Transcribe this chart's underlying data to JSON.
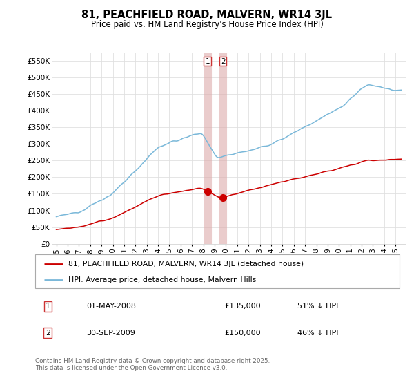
{
  "title1": "81, PEACHFIELD ROAD, MALVERN, WR14 3JL",
  "title2": "Price paid vs. HM Land Registry's House Price Index (HPI)",
  "ylim": [
    0,
    575000
  ],
  "yticks": [
    0,
    50000,
    100000,
    150000,
    200000,
    250000,
    300000,
    350000,
    400000,
    450000,
    500000,
    550000
  ],
  "ytick_labels": [
    "£0",
    "£50K",
    "£100K",
    "£150K",
    "£200K",
    "£250K",
    "£300K",
    "£350K",
    "£400K",
    "£450K",
    "£500K",
    "£550K"
  ],
  "hpi_color": "#7ab8d9",
  "price_color": "#cc0000",
  "marker_color": "#cc0000",
  "vline_color": "#ddaaaa",
  "grid_color": "#e0e0e0",
  "legend_label_red": "81, PEACHFIELD ROAD, MALVERN, WR14 3JL (detached house)",
  "legend_label_blue": "HPI: Average price, detached house, Malvern Hills",
  "transaction1_date": "01-MAY-2008",
  "transaction1_price": "£135,000",
  "transaction1_hpi": "51% ↓ HPI",
  "transaction2_date": "30-SEP-2009",
  "transaction2_price": "£150,000",
  "transaction2_hpi": "46% ↓ HPI",
  "footer": "Contains HM Land Registry data © Crown copyright and database right 2025.\nThis data is licensed under the Open Government Licence v3.0.",
  "t1_year": 2008.37,
  "t2_year": 2009.75,
  "t1_price": 135000,
  "t2_price": 150000,
  "xlim_left": 1994.6,
  "xlim_right": 2025.9
}
